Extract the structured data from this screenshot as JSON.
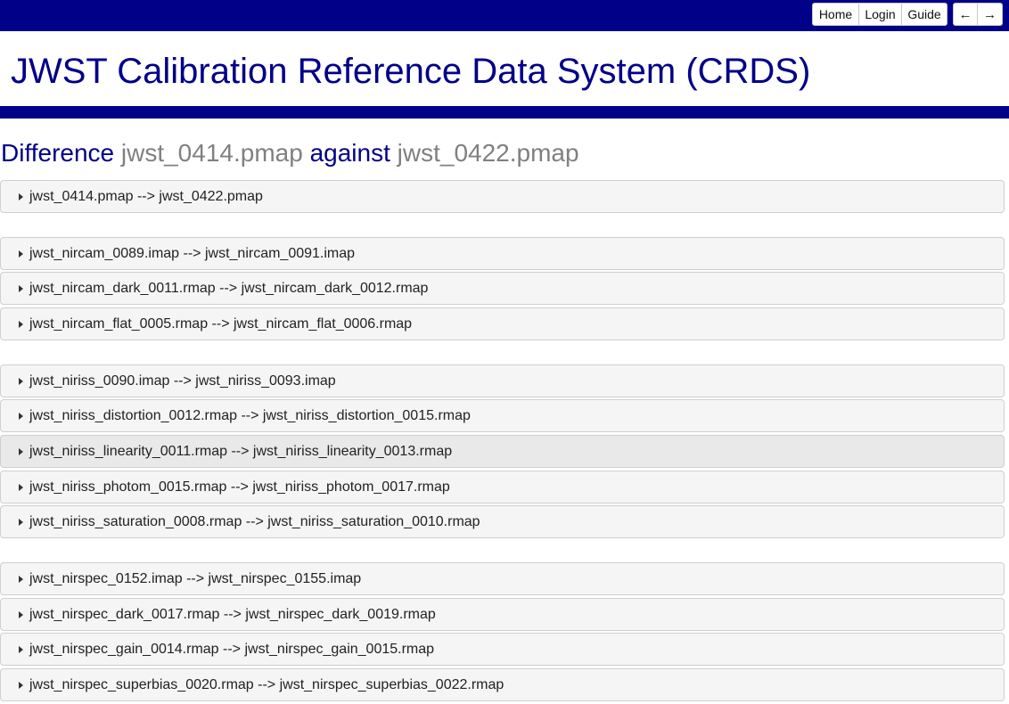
{
  "topnav": {
    "home": "Home",
    "login": "Login",
    "guide": "Guide",
    "back_icon": "←",
    "forward_icon": "→"
  },
  "site_title": "JWST Calibration Reference Data System (CRDS)",
  "heading": {
    "prefix": "Difference",
    "old_file": "jwst_0414.pmap",
    "middle": "against",
    "new_file": "jwst_0422.pmap"
  },
  "diffs": [
    "jwst_0414.pmap --> jwst_0422.pmap",
    "jwst_nircam_0089.imap --> jwst_nircam_0091.imap",
    "jwst_nircam_dark_0011.rmap --> jwst_nircam_dark_0012.rmap",
    "jwst_nircam_flat_0005.rmap --> jwst_nircam_flat_0006.rmap",
    "jwst_niriss_0090.imap --> jwst_niriss_0093.imap",
    "jwst_niriss_distortion_0012.rmap --> jwst_niriss_distortion_0015.rmap",
    "jwst_niriss_linearity_0011.rmap --> jwst_niriss_linearity_0013.rmap",
    "jwst_niriss_photom_0015.rmap --> jwst_niriss_photom_0017.rmap",
    "jwst_niriss_saturation_0008.rmap --> jwst_niriss_saturation_0010.rmap",
    "jwst_nirspec_0152.imap --> jwst_nirspec_0155.imap",
    "jwst_nirspec_dark_0017.rmap --> jwst_nirspec_dark_0019.rmap",
    "jwst_nirspec_gain_0014.rmap --> jwst_nirspec_gain_0015.rmap",
    "jwst_nirspec_superbias_0020.rmap --> jwst_nirspec_superbias_0022.rmap"
  ],
  "colors": {
    "brand": "#000088",
    "heading_grey": "#808080",
    "row_bg": "#f5f5f5",
    "row_hover_bg": "#e9e9e9"
  }
}
